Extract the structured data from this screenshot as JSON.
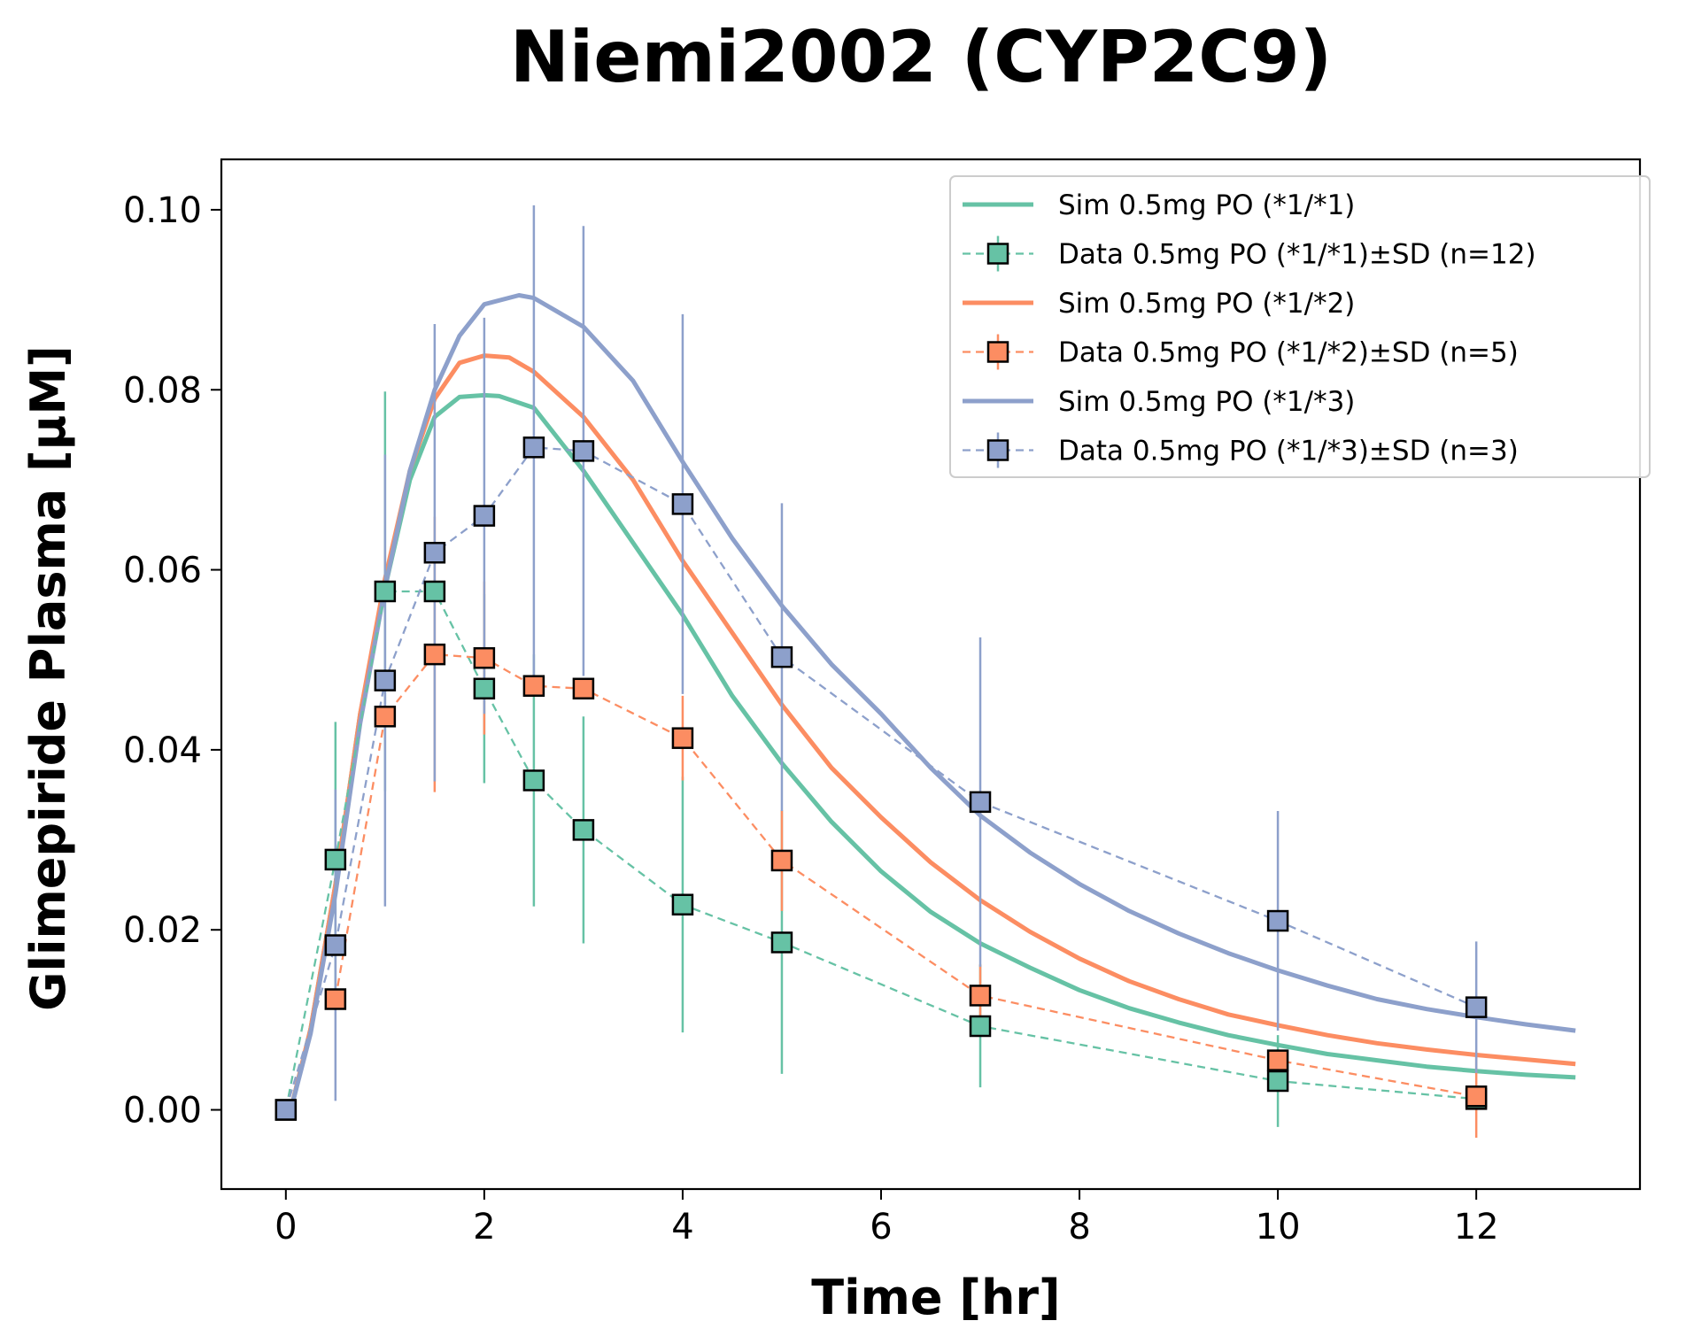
{
  "chart_data": {
    "type": "line",
    "title": "Niemi2002 (CYP2C9)",
    "xlabel": "Time [hr]",
    "ylabel": "Glimepiride Plasma [µM]",
    "xlim": [
      -0.65,
      13.65
    ],
    "ylim": [
      -0.0088,
      0.1056
    ],
    "xticks": [
      0,
      2,
      4,
      6,
      8,
      10,
      12
    ],
    "xtick_labels": [
      "0",
      "2",
      "4",
      "6",
      "8",
      "10",
      "12"
    ],
    "yticks": [
      0.0,
      0.02,
      0.04,
      0.06,
      0.08,
      0.1
    ],
    "ytick_labels": [
      "0.00",
      "0.02",
      "0.04",
      "0.06",
      "0.08",
      "0.10"
    ],
    "grid": false,
    "legend_position": "top-right",
    "colors": {
      "*1/*1": "#66c2a5",
      "*1/*2": "#fc8d62",
      "*1/*3": "#8da0cb"
    },
    "series": [
      {
        "name": "Sim 0.5mg PO (*1/*1)",
        "kind": "sim",
        "color": "#66c2a5",
        "x": [
          0.05,
          0.25,
          0.5,
          0.75,
          1.0,
          1.25,
          1.5,
          1.75,
          2.0,
          2.15,
          2.5,
          3.0,
          3.5,
          4.0,
          4.5,
          5.0,
          5.5,
          6.0,
          6.5,
          7.0,
          7.5,
          8.0,
          8.5,
          9.0,
          9.5,
          10.0,
          10.5,
          11.0,
          11.5,
          12.0,
          12.5,
          13.0
        ],
        "y": [
          0.0,
          0.009,
          0.025,
          0.044,
          0.058,
          0.07,
          0.077,
          0.0792,
          0.0794,
          0.0793,
          0.078,
          0.071,
          0.063,
          0.055,
          0.046,
          0.0385,
          0.032,
          0.0265,
          0.022,
          0.0185,
          0.0158,
          0.0133,
          0.0113,
          0.0097,
          0.0083,
          0.0072,
          0.0062,
          0.0055,
          0.0048,
          0.0043,
          0.0039,
          0.0036
        ]
      },
      {
        "name": "Data 0.5mg PO (*1/*1)±SD (n=12)",
        "kind": "data",
        "color": "#66c2a5",
        "x": [
          0,
          0.5,
          1.0,
          1.5,
          2.0,
          2.5,
          3.0,
          4.0,
          5.0,
          7.0,
          10.0,
          12.0
        ],
        "y": [
          0.0,
          0.0278,
          0.0576,
          0.0576,
          0.0468,
          0.0366,
          0.0311,
          0.0228,
          0.0186,
          0.0093,
          0.0032,
          0.0012
        ],
        "sd": [
          0.0,
          0.0153,
          0.0222,
          0.0,
          0.0105,
          0.014,
          0.0126,
          0.0142,
          0.0146,
          0.0068,
          0.0051,
          0.0
        ],
        "n": 12
      },
      {
        "name": "Sim 0.5mg PO (*1/*2)",
        "kind": "sim",
        "color": "#fc8d62",
        "x": [
          0.05,
          0.25,
          0.5,
          0.75,
          1.0,
          1.25,
          1.5,
          1.75,
          2.0,
          2.25,
          2.5,
          3.0,
          3.5,
          4.0,
          4.5,
          5.0,
          5.5,
          6.0,
          6.5,
          7.0,
          7.5,
          8.0,
          8.5,
          9.0,
          9.5,
          10.0,
          10.5,
          11.0,
          11.5,
          12.0,
          12.5,
          13.0
        ],
        "y": [
          0.0,
          0.009,
          0.025,
          0.044,
          0.059,
          0.071,
          0.079,
          0.083,
          0.0838,
          0.0836,
          0.082,
          0.077,
          0.07,
          0.061,
          0.053,
          0.045,
          0.038,
          0.0325,
          0.0275,
          0.0233,
          0.0198,
          0.0168,
          0.0143,
          0.0123,
          0.0106,
          0.0094,
          0.0083,
          0.0074,
          0.0067,
          0.0061,
          0.0056,
          0.0051
        ]
      },
      {
        "name": "Data 0.5mg PO (*1/*2)±SD (n=5)",
        "kind": "data",
        "color": "#fc8d62",
        "x": [
          0.5,
          1.0,
          1.5,
          2.0,
          2.5,
          3.0,
          4.0,
          5.0,
          7.0,
          10.0,
          12.0
        ],
        "y": [
          0.0123,
          0.0437,
          0.0506,
          0.0502,
          0.0471,
          0.0468,
          0.0413,
          0.0277,
          0.0127,
          0.0055,
          0.0015
        ],
        "sd": [
          0.0,
          0.0,
          0.0153,
          0.0085,
          0.0,
          0.0,
          0.0047,
          0.0056,
          0.0035,
          0.0,
          0.0046
        ],
        "n": 5
      },
      {
        "name": "Sim 0.5mg PO (*1/*3)",
        "kind": "sim",
        "color": "#8da0cb",
        "x": [
          0.05,
          0.25,
          0.5,
          0.75,
          1.0,
          1.25,
          1.5,
          1.75,
          2.0,
          2.35,
          2.5,
          3.0,
          3.5,
          4.0,
          4.5,
          5.0,
          5.5,
          6.0,
          6.5,
          7.0,
          7.5,
          8.0,
          8.5,
          9.0,
          9.5,
          10.0,
          10.5,
          11.0,
          11.5,
          12.0,
          12.5,
          13.0
        ],
        "y": [
          0.0,
          0.0085,
          0.024,
          0.043,
          0.058,
          0.071,
          0.08,
          0.086,
          0.0895,
          0.0905,
          0.0902,
          0.087,
          0.081,
          0.072,
          0.0635,
          0.056,
          0.0495,
          0.044,
          0.038,
          0.0327,
          0.0286,
          0.0251,
          0.0221,
          0.0196,
          0.0174,
          0.0155,
          0.0138,
          0.0123,
          0.0112,
          0.0103,
          0.0095,
          0.0088
        ]
      },
      {
        "name": "Data 0.5mg PO (*1/*3)±SD (n=3)",
        "kind": "data",
        "color": "#8da0cb",
        "x": [
          0,
          0.5,
          1.0,
          1.5,
          2.0,
          2.5,
          3.0,
          4.0,
          5.0,
          7.0,
          10.0,
          12.0
        ],
        "y": [
          0.0,
          0.0183,
          0.0477,
          0.0619,
          0.066,
          0.0736,
          0.0732,
          0.0673,
          0.0503,
          0.0342,
          0.021,
          0.0114
        ],
        "sd": [
          0.0,
          0.0173,
          0.0251,
          0.0254,
          0.022,
          0.0269,
          0.025,
          0.0211,
          0.0171,
          0.0183,
          0.0122,
          0.0073
        ],
        "n": 3
      }
    ]
  }
}
